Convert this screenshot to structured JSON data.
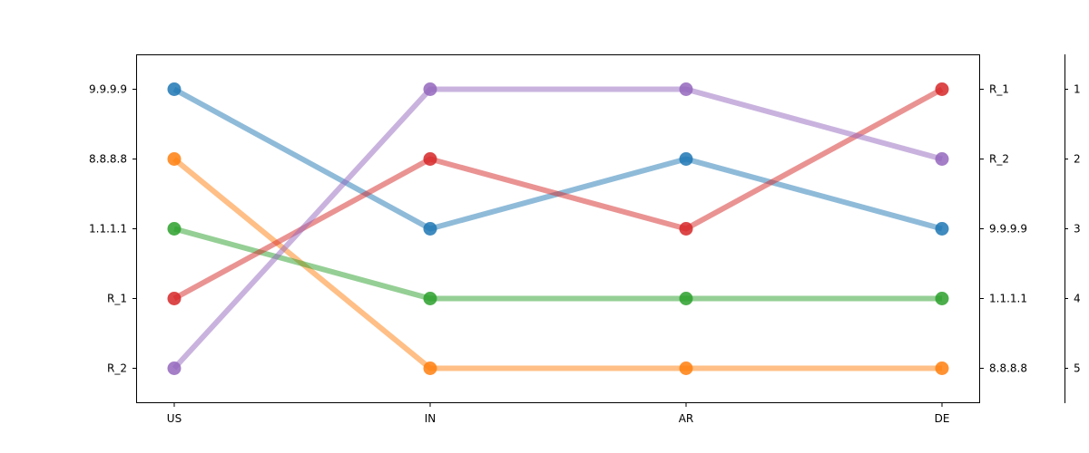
{
  "chart_data": {
    "type": "line",
    "title": "",
    "xlabel": "",
    "ylabel": "",
    "categories": [
      "US",
      "IN",
      "AR",
      "DE"
    ],
    "ranks": [
      1,
      2,
      3,
      4,
      5
    ],
    "ylim_rank": [
      0.5,
      5.5
    ],
    "left_tick_labels": [
      "9.9.9.9",
      "8.8.8.8",
      "1.1.1.1",
      "R_1",
      "R_2"
    ],
    "right_tick_labels": [
      "R_1",
      "R_2",
      "9.9.9.9",
      "1.1.1.1",
      "8.8.8.8"
    ],
    "far_right_tick_labels": [
      "1",
      "2",
      "3",
      "4",
      "5"
    ],
    "grid": false,
    "legend": "none",
    "series": [
      {
        "key": "9.9.9.9",
        "color": "#1f77b4",
        "ranks": [
          1,
          3,
          2,
          3
        ]
      },
      {
        "key": "8.8.8.8",
        "color": "#ff7f0e",
        "ranks": [
          2,
          5,
          5,
          5
        ]
      },
      {
        "key": "1.1.1.1",
        "color": "#2ca02c",
        "ranks": [
          3,
          4,
          4,
          4
        ]
      },
      {
        "key": "R_1",
        "color": "#d62728",
        "ranks": [
          4,
          2,
          3,
          1
        ]
      },
      {
        "key": "R_2",
        "color": "#9467bd",
        "ranks": [
          5,
          1,
          1,
          2
        ]
      }
    ]
  }
}
